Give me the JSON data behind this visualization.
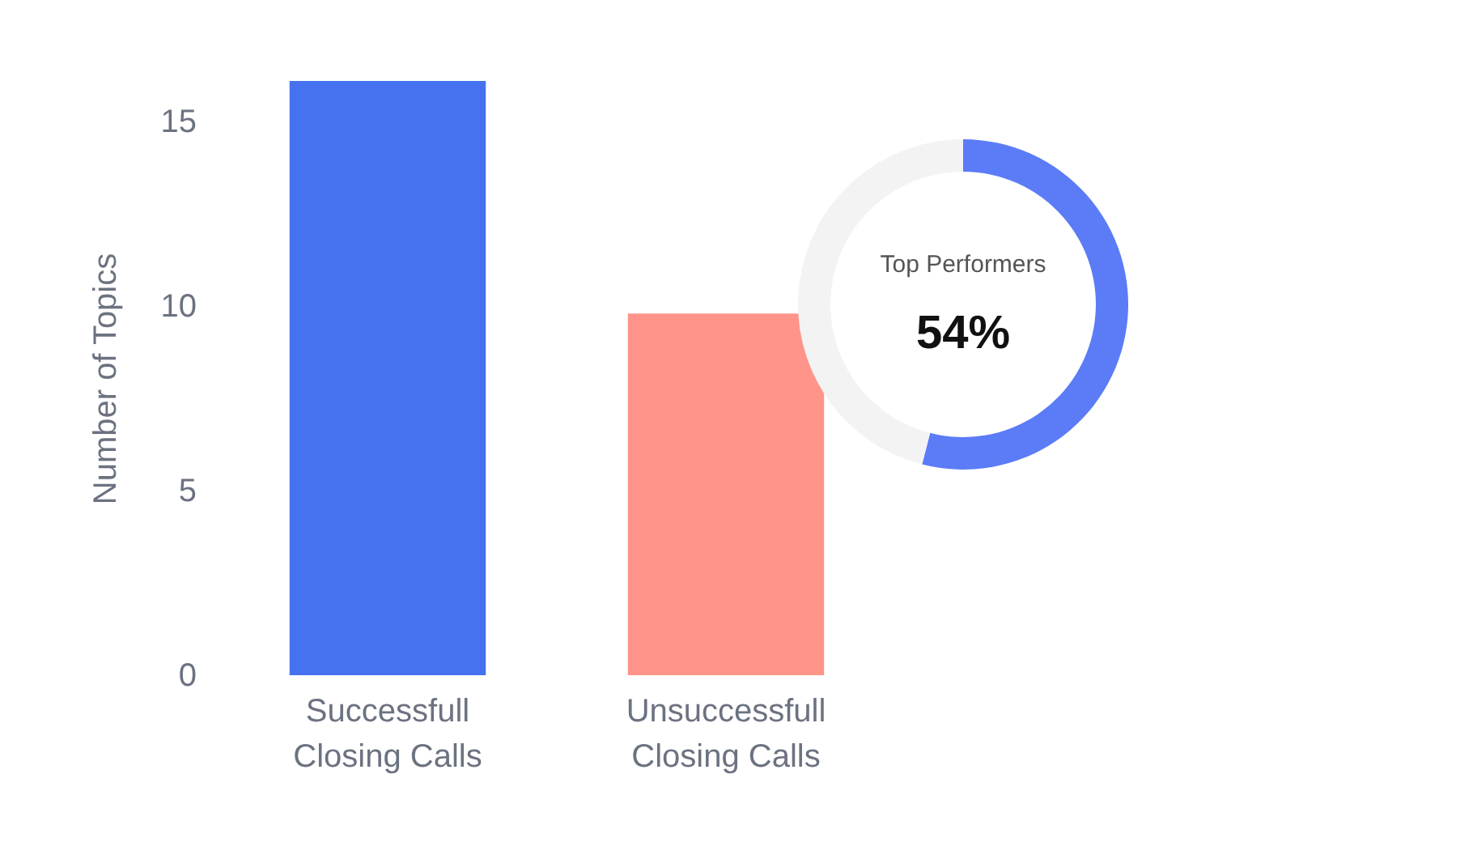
{
  "chart_data": [
    {
      "type": "bar",
      "ylabel": "Number of Topics",
      "categories": [
        "Successfull Closing Calls",
        "Unsuccessfull Closing Calls"
      ],
      "values": [
        16.1,
        9.8
      ],
      "colors": [
        "#4672f0",
        "#ff958a"
      ],
      "ylim": [
        0,
        16.1
      ],
      "yticks": [
        0,
        5,
        10,
        15
      ]
    },
    {
      "type": "donut",
      "title": "Top Performers",
      "categories": [
        null,
        null
      ],
      "values": [
        54,
        46
      ],
      "colors": [
        "#5b7cf6",
        "#f3f3f3"
      ],
      "value_labels": [
        "54%",
        null
      ]
    }
  ]
}
